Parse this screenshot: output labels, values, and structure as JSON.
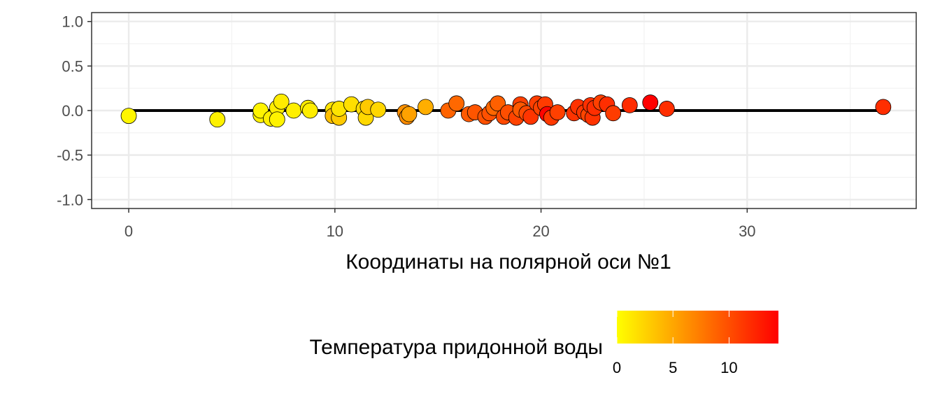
{
  "chart_data": {
    "type": "scatter",
    "title": "",
    "xlabel": "Координаты на полярной оси №1",
    "ylabel": "",
    "xlim": [
      -1.8,
      38.2
    ],
    "ylim": [
      -1.1,
      1.1
    ],
    "x_ticks": [
      0,
      10,
      20,
      30
    ],
    "x_tick_labels": [
      "0",
      "10",
      "20",
      "30"
    ],
    "y_ticks": [
      -1.0,
      -0.5,
      0.0,
      0.5,
      1.0
    ],
    "y_tick_labels": [
      "-1.0",
      "-0.5",
      "0.0",
      "0.5",
      "1.0"
    ],
    "grid": true,
    "reference_line": {
      "y": 0.0,
      "x_from": 0.0,
      "x_to": 36.6
    },
    "color_scale": {
      "title": "Температура придонной воды",
      "ticks": [
        0,
        5,
        10
      ],
      "tick_labels": [
        "0",
        "5",
        "10"
      ],
      "range": [
        0,
        14.4
      ],
      "low_color": "#ffff00",
      "high_color": "#ff0000",
      "position": "bottom"
    },
    "points": [
      {
        "x": 0.0,
        "y": -0.06,
        "t": 0.5
      },
      {
        "x": 4.3,
        "y": -0.1,
        "t": 0.8
      },
      {
        "x": 6.4,
        "y": -0.05,
        "t": 0.8
      },
      {
        "x": 6.4,
        "y": 0.0,
        "t": 0.6
      },
      {
        "x": 6.9,
        "y": -0.09,
        "t": 0.9
      },
      {
        "x": 7.2,
        "y": 0.03,
        "t": 1.0
      },
      {
        "x": 7.2,
        "y": -0.1,
        "t": 0.7
      },
      {
        "x": 7.4,
        "y": 0.1,
        "t": 1.1
      },
      {
        "x": 8.0,
        "y": 0.0,
        "t": 0.9
      },
      {
        "x": 8.7,
        "y": 0.03,
        "t": 1.2
      },
      {
        "x": 8.8,
        "y": 0.0,
        "t": 1.0
      },
      {
        "x": 9.9,
        "y": 0.01,
        "t": 1.6
      },
      {
        "x": 9.9,
        "y": -0.06,
        "t": 3.6
      },
      {
        "x": 10.2,
        "y": -0.08,
        "t": 3.0
      },
      {
        "x": 10.2,
        "y": 0.02,
        "t": 1.5
      },
      {
        "x": 10.8,
        "y": 0.07,
        "t": 1.8
      },
      {
        "x": 11.4,
        "y": 0.02,
        "t": 2.0
      },
      {
        "x": 11.5,
        "y": -0.08,
        "t": 2.2
      },
      {
        "x": 11.6,
        "y": 0.04,
        "t": 3.0
      },
      {
        "x": 12.1,
        "y": 0.01,
        "t": 2.3
      },
      {
        "x": 13.4,
        "y": -0.02,
        "t": 6.2
      },
      {
        "x": 13.5,
        "y": -0.07,
        "t": 6.5
      },
      {
        "x": 13.6,
        "y": -0.04,
        "t": 5.3
      },
      {
        "x": 14.4,
        "y": 0.04,
        "t": 4.6
      },
      {
        "x": 15.5,
        "y": 0.0,
        "t": 8.8
      },
      {
        "x": 15.9,
        "y": 0.08,
        "t": 8.5
      },
      {
        "x": 16.5,
        "y": -0.04,
        "t": 9.3
      },
      {
        "x": 16.8,
        "y": -0.02,
        "t": 9.6
      },
      {
        "x": 17.3,
        "y": -0.07,
        "t": 9.8
      },
      {
        "x": 17.5,
        "y": -0.03,
        "t": 9.9
      },
      {
        "x": 17.7,
        "y": 0.03,
        "t": 8.6
      },
      {
        "x": 17.9,
        "y": 0.08,
        "t": 9.0
      },
      {
        "x": 18.2,
        "y": -0.07,
        "t": 10.2
      },
      {
        "x": 18.4,
        "y": -0.02,
        "t": 10.0
      },
      {
        "x": 18.8,
        "y": -0.08,
        "t": 10.6
      },
      {
        "x": 19.0,
        "y": 0.07,
        "t": 10.8
      },
      {
        "x": 19.0,
        "y": 0.01,
        "t": 9.4
      },
      {
        "x": 19.3,
        "y": -0.03,
        "t": 10.3
      },
      {
        "x": 19.5,
        "y": -0.07,
        "t": 11.4
      },
      {
        "x": 19.8,
        "y": 0.08,
        "t": 10.9
      },
      {
        "x": 20.0,
        "y": 0.03,
        "t": 10.6
      },
      {
        "x": 20.2,
        "y": 0.07,
        "t": 11.0
      },
      {
        "x": 20.3,
        "y": -0.04,
        "t": 14.2
      },
      {
        "x": 20.5,
        "y": -0.08,
        "t": 11.2
      },
      {
        "x": 20.8,
        "y": -0.02,
        "t": 10.8
      },
      {
        "x": 21.6,
        "y": -0.03,
        "t": 11.5
      },
      {
        "x": 21.8,
        "y": 0.04,
        "t": 11.6
      },
      {
        "x": 22.1,
        "y": -0.02,
        "t": 11.3
      },
      {
        "x": 22.3,
        "y": -0.05,
        "t": 10.5
      },
      {
        "x": 22.4,
        "y": 0.06,
        "t": 11.7
      },
      {
        "x": 22.5,
        "y": -0.08,
        "t": 11.5
      },
      {
        "x": 22.6,
        "y": 0.03,
        "t": 11.8
      },
      {
        "x": 22.9,
        "y": 0.09,
        "t": 10.8
      },
      {
        "x": 23.2,
        "y": 0.07,
        "t": 11.8
      },
      {
        "x": 23.5,
        "y": -0.03,
        "t": 11.0
      },
      {
        "x": 24.3,
        "y": 0.06,
        "t": 11.9
      },
      {
        "x": 25.3,
        "y": 0.09,
        "t": 14.4
      },
      {
        "x": 26.1,
        "y": 0.02,
        "t": 11.8
      },
      {
        "x": 36.6,
        "y": 0.04,
        "t": 11.8
      }
    ]
  }
}
